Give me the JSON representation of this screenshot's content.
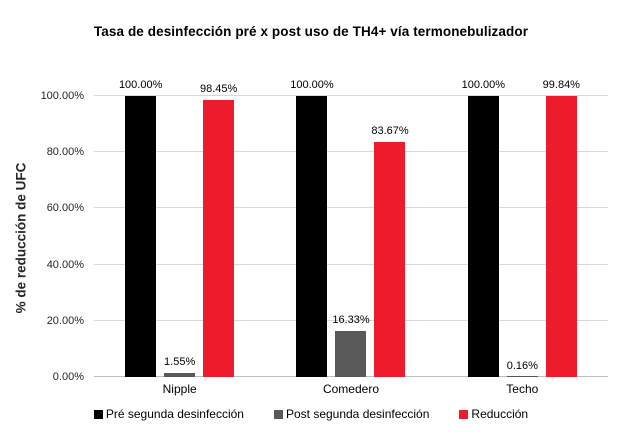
{
  "title": "Tasa de desinfección pré x post uso de TH4+ vía termonebulizador",
  "chart_data": {
    "type": "bar",
    "title": "Tasa de desinfección pré x post uso de TH4+ vía termonebulizador",
    "categories": [
      "Nipple",
      "Comedero",
      "Techo"
    ],
    "series": [
      {
        "name": "Pré segunda desinfección",
        "color": "#000000",
        "values": [
          100.0,
          100.0,
          100.0
        ],
        "labels": [
          "100.00%",
          "100.00%",
          "100.00%"
        ]
      },
      {
        "name": "Post segunda desinfección",
        "color": "#595959",
        "values": [
          1.55,
          16.33,
          0.16
        ],
        "labels": [
          "1.55%",
          "16.33%",
          "0.16%"
        ]
      },
      {
        "name": "Reducción",
        "color": "#ec1c2c",
        "values": [
          98.45,
          83.67,
          99.84
        ],
        "labels": [
          "98.45%",
          "83.67%",
          "99.84%"
        ]
      }
    ],
    "xlabel": "",
    "ylabel": "% de reducción de UFC",
    "ylim": [
      0,
      100
    ],
    "yticks": [
      "0.00%",
      "20.00%",
      "40.00%",
      "60.00%",
      "80.00%",
      "100.00%"
    ],
    "grid": true,
    "legend_position": "bottom"
  }
}
